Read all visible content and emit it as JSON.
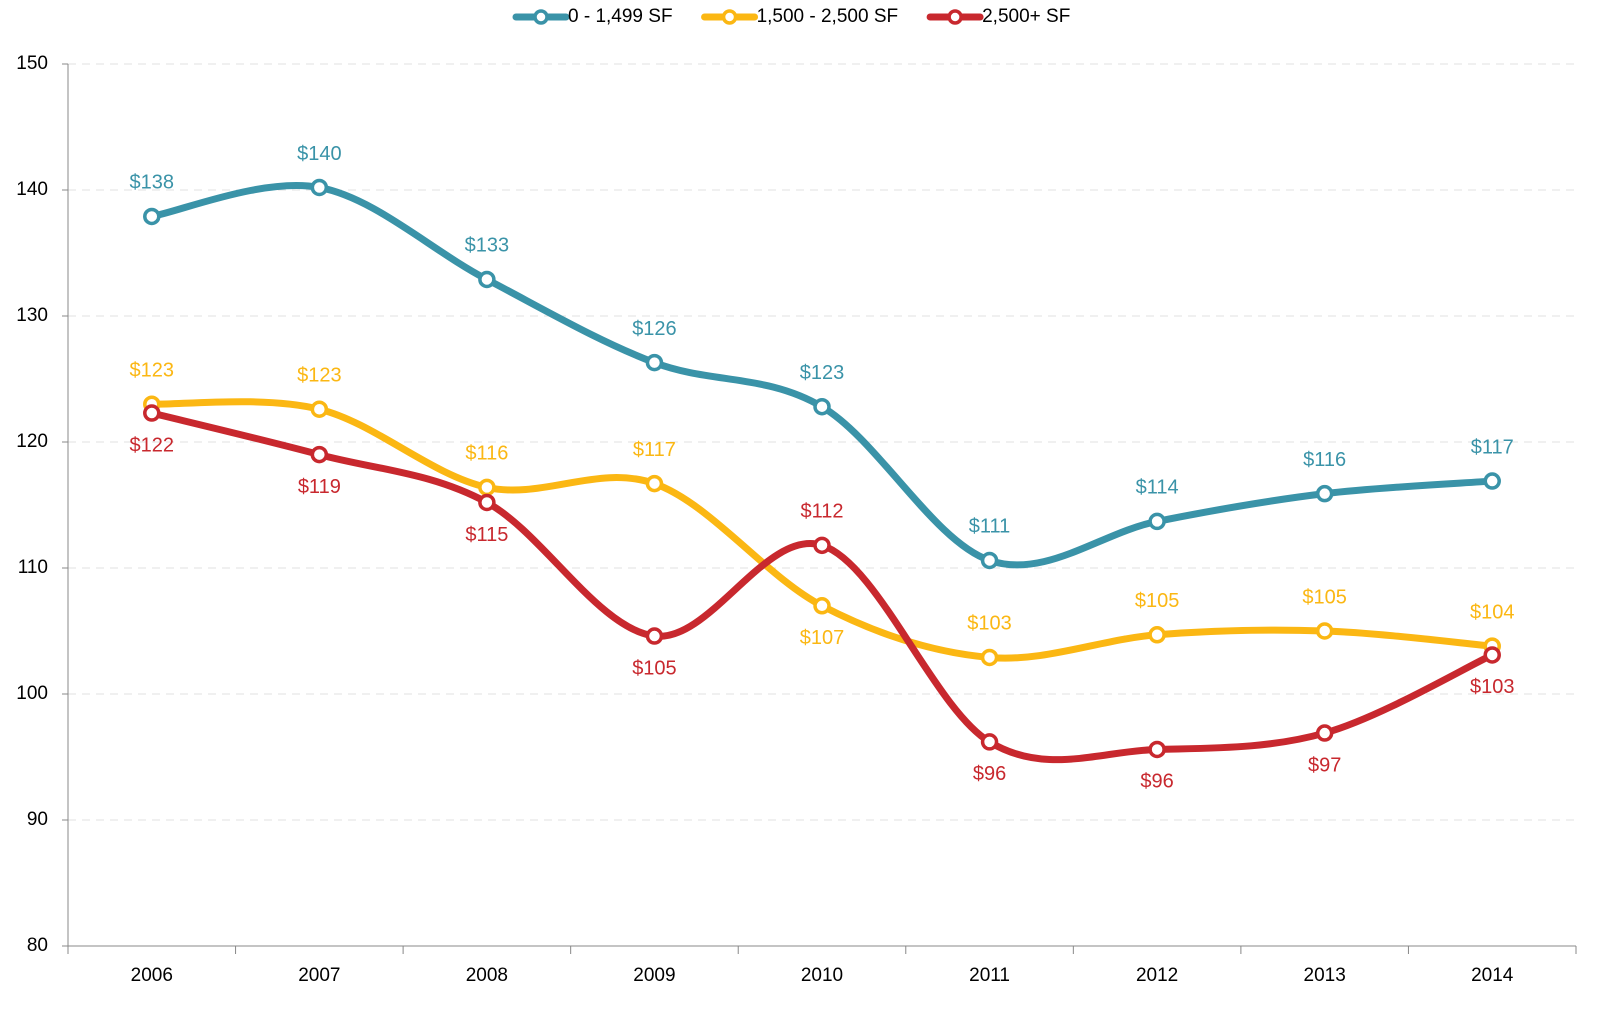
{
  "chart_data": {
    "type": "line",
    "categories": [
      "2006",
      "2007",
      "2008",
      "2009",
      "2010",
      "2011",
      "2012",
      "2013",
      "2014"
    ],
    "series": [
      {
        "name": "0 - 1,499 SF",
        "color": "#3a93a8",
        "values": [
          137.9,
          140.2,
          132.9,
          126.3,
          122.8,
          110.6,
          113.7,
          115.9,
          116.9
        ],
        "value_labels": [
          "$138",
          "$140",
          "$133",
          "$126",
          "$123",
          "$111",
          "$114",
          "$116",
          "$117"
        ]
      },
      {
        "name": "1,500 - 2,500 SF",
        "color": "#fbb713",
        "values": [
          123.0,
          122.6,
          116.4,
          116.7,
          107.0,
          102.9,
          104.7,
          105.0,
          103.8
        ],
        "value_labels": [
          "$123",
          "$123",
          "$116",
          "$117",
          "$107",
          "$103",
          "$105",
          "$105",
          "$104"
        ]
      },
      {
        "name": "2,500+ SF",
        "color": "#c8282e",
        "values": [
          122.3,
          119.0,
          115.2,
          104.6,
          111.8,
          96.2,
          95.6,
          96.9,
          103.1
        ],
        "value_labels": [
          "$122",
          "$119",
          "$115",
          "$105",
          "$112",
          "$96",
          "$96",
          "$97",
          "$103"
        ]
      }
    ],
    "ylim": [
      80,
      150
    ],
    "yticks": [
      80,
      90,
      100,
      110,
      120,
      130,
      140,
      150
    ],
    "grid": true,
    "legend": "top"
  }
}
